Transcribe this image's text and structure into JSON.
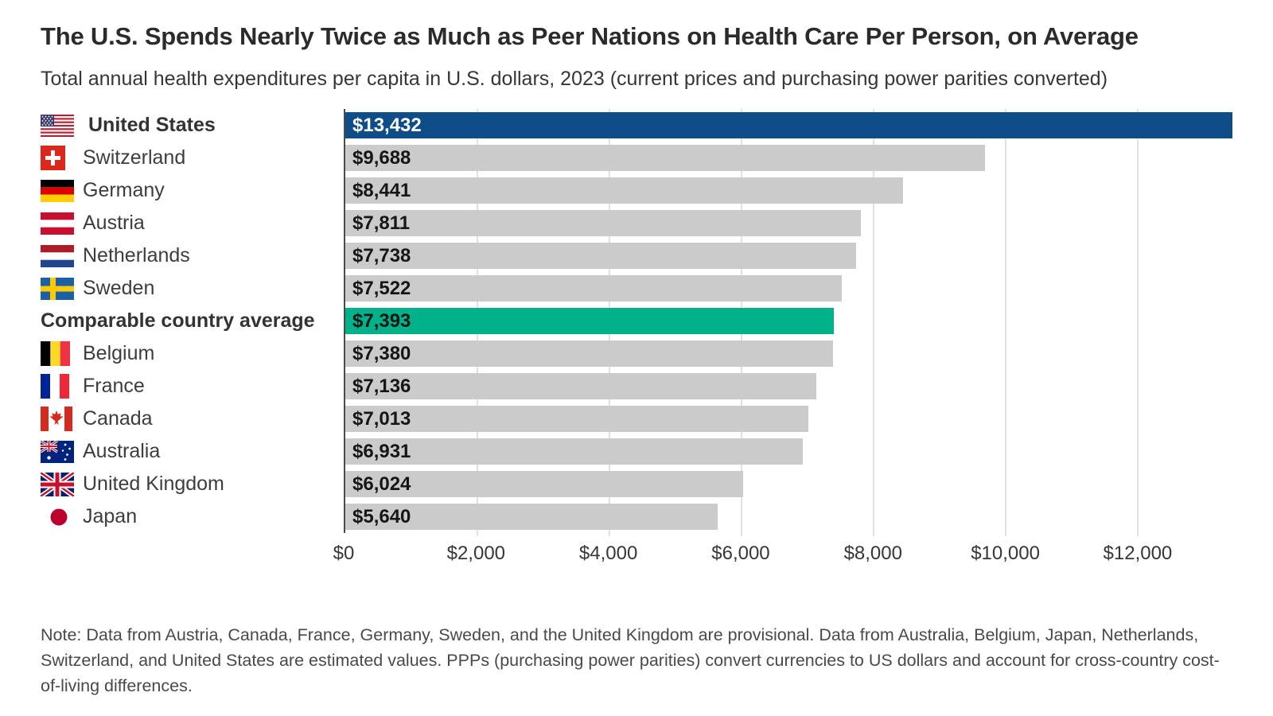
{
  "page": {
    "title": "The U.S. Spends Nearly Twice as Much as Peer Nations on Health Care Per Person, on Average",
    "subtitle": "Total annual health expenditures per capita in U.S. dollars, 2023 (current prices and purchasing power parities converted)",
    "note": "Note: Data from Austria, Canada, France, Germany, Sweden, and the United Kingdom are provisional. Data from Australia, Belgium, Japan, Netherlands, Switzerland, and United States are estimated values. PPPs (purchasing power parities) convert currencies to US dollars and account for cross-country cost-of-living differences."
  },
  "chart_data": {
    "type": "bar",
    "orientation": "horizontal",
    "title": "The U.S. Spends Nearly Twice as Much as Peer Nations on Health Care Per Person, on Average",
    "subtitle": "Total annual health expenditures per capita in U.S. dollars, 2023 (current prices and purchasing power parities converted)",
    "xlabel": "",
    "ylabel": "",
    "xlim": [
      0,
      13432
    ],
    "grid": true,
    "x_ticks": [
      {
        "value": 0,
        "label": "$0"
      },
      {
        "value": 2000,
        "label": "$2,000"
      },
      {
        "value": 4000,
        "label": "$4,000"
      },
      {
        "value": 6000,
        "label": "$6,000"
      },
      {
        "value": 8000,
        "label": "$8,000"
      },
      {
        "value": 10000,
        "label": "$10,000"
      },
      {
        "value": 12000,
        "label": "$12,000"
      }
    ],
    "rows": [
      {
        "label": "United States",
        "flag": "us-flag-icon",
        "value": 13432,
        "value_label": "$13,432",
        "bold": true,
        "color_key": "us"
      },
      {
        "label": "Switzerland",
        "flag": "switzerland-flag-icon",
        "value": 9688,
        "value_label": "$9,688",
        "bold": false,
        "color_key": "default"
      },
      {
        "label": "Germany",
        "flag": "germany-flag-icon",
        "value": 8441,
        "value_label": "$8,441",
        "bold": false,
        "color_key": "default"
      },
      {
        "label": "Austria",
        "flag": "austria-flag-icon",
        "value": 7811,
        "value_label": "$7,811",
        "bold": false,
        "color_key": "default"
      },
      {
        "label": "Netherlands",
        "flag": "netherlands-flag-icon",
        "value": 7738,
        "value_label": "$7,738",
        "bold": false,
        "color_key": "default"
      },
      {
        "label": "Sweden",
        "flag": "sweden-flag-icon",
        "value": 7522,
        "value_label": "$7,522",
        "bold": false,
        "color_key": "default"
      },
      {
        "label": "Comparable country average",
        "flag": null,
        "value": 7393,
        "value_label": "$7,393",
        "bold": true,
        "color_key": "average"
      },
      {
        "label": "Belgium",
        "flag": "belgium-flag-icon",
        "value": 7380,
        "value_label": "$7,380",
        "bold": false,
        "color_key": "default"
      },
      {
        "label": "France",
        "flag": "france-flag-icon",
        "value": 7136,
        "value_label": "$7,136",
        "bold": false,
        "color_key": "default"
      },
      {
        "label": "Canada",
        "flag": "canada-flag-icon",
        "value": 7013,
        "value_label": "$7,013",
        "bold": false,
        "color_key": "default"
      },
      {
        "label": "Australia",
        "flag": "australia-flag-icon",
        "value": 6931,
        "value_label": "$6,931",
        "bold": false,
        "color_key": "default"
      },
      {
        "label": "United Kingdom",
        "flag": "uk-flag-icon",
        "value": 6024,
        "value_label": "$6,024",
        "bold": false,
        "color_key": "default"
      },
      {
        "label": "Japan",
        "flag": "japan-flag-icon",
        "value": 5640,
        "value_label": "$5,640",
        "bold": false,
        "color_key": "default"
      }
    ],
    "colors": {
      "us_bar": "#0e4d87",
      "average_bar": "#00b189",
      "default_bar": "#cbcbcb",
      "us_value_text": "#ffffff",
      "value_text": "#161616",
      "gridline": "#e1e1e1",
      "axis_line": "#4a4a4a"
    }
  }
}
